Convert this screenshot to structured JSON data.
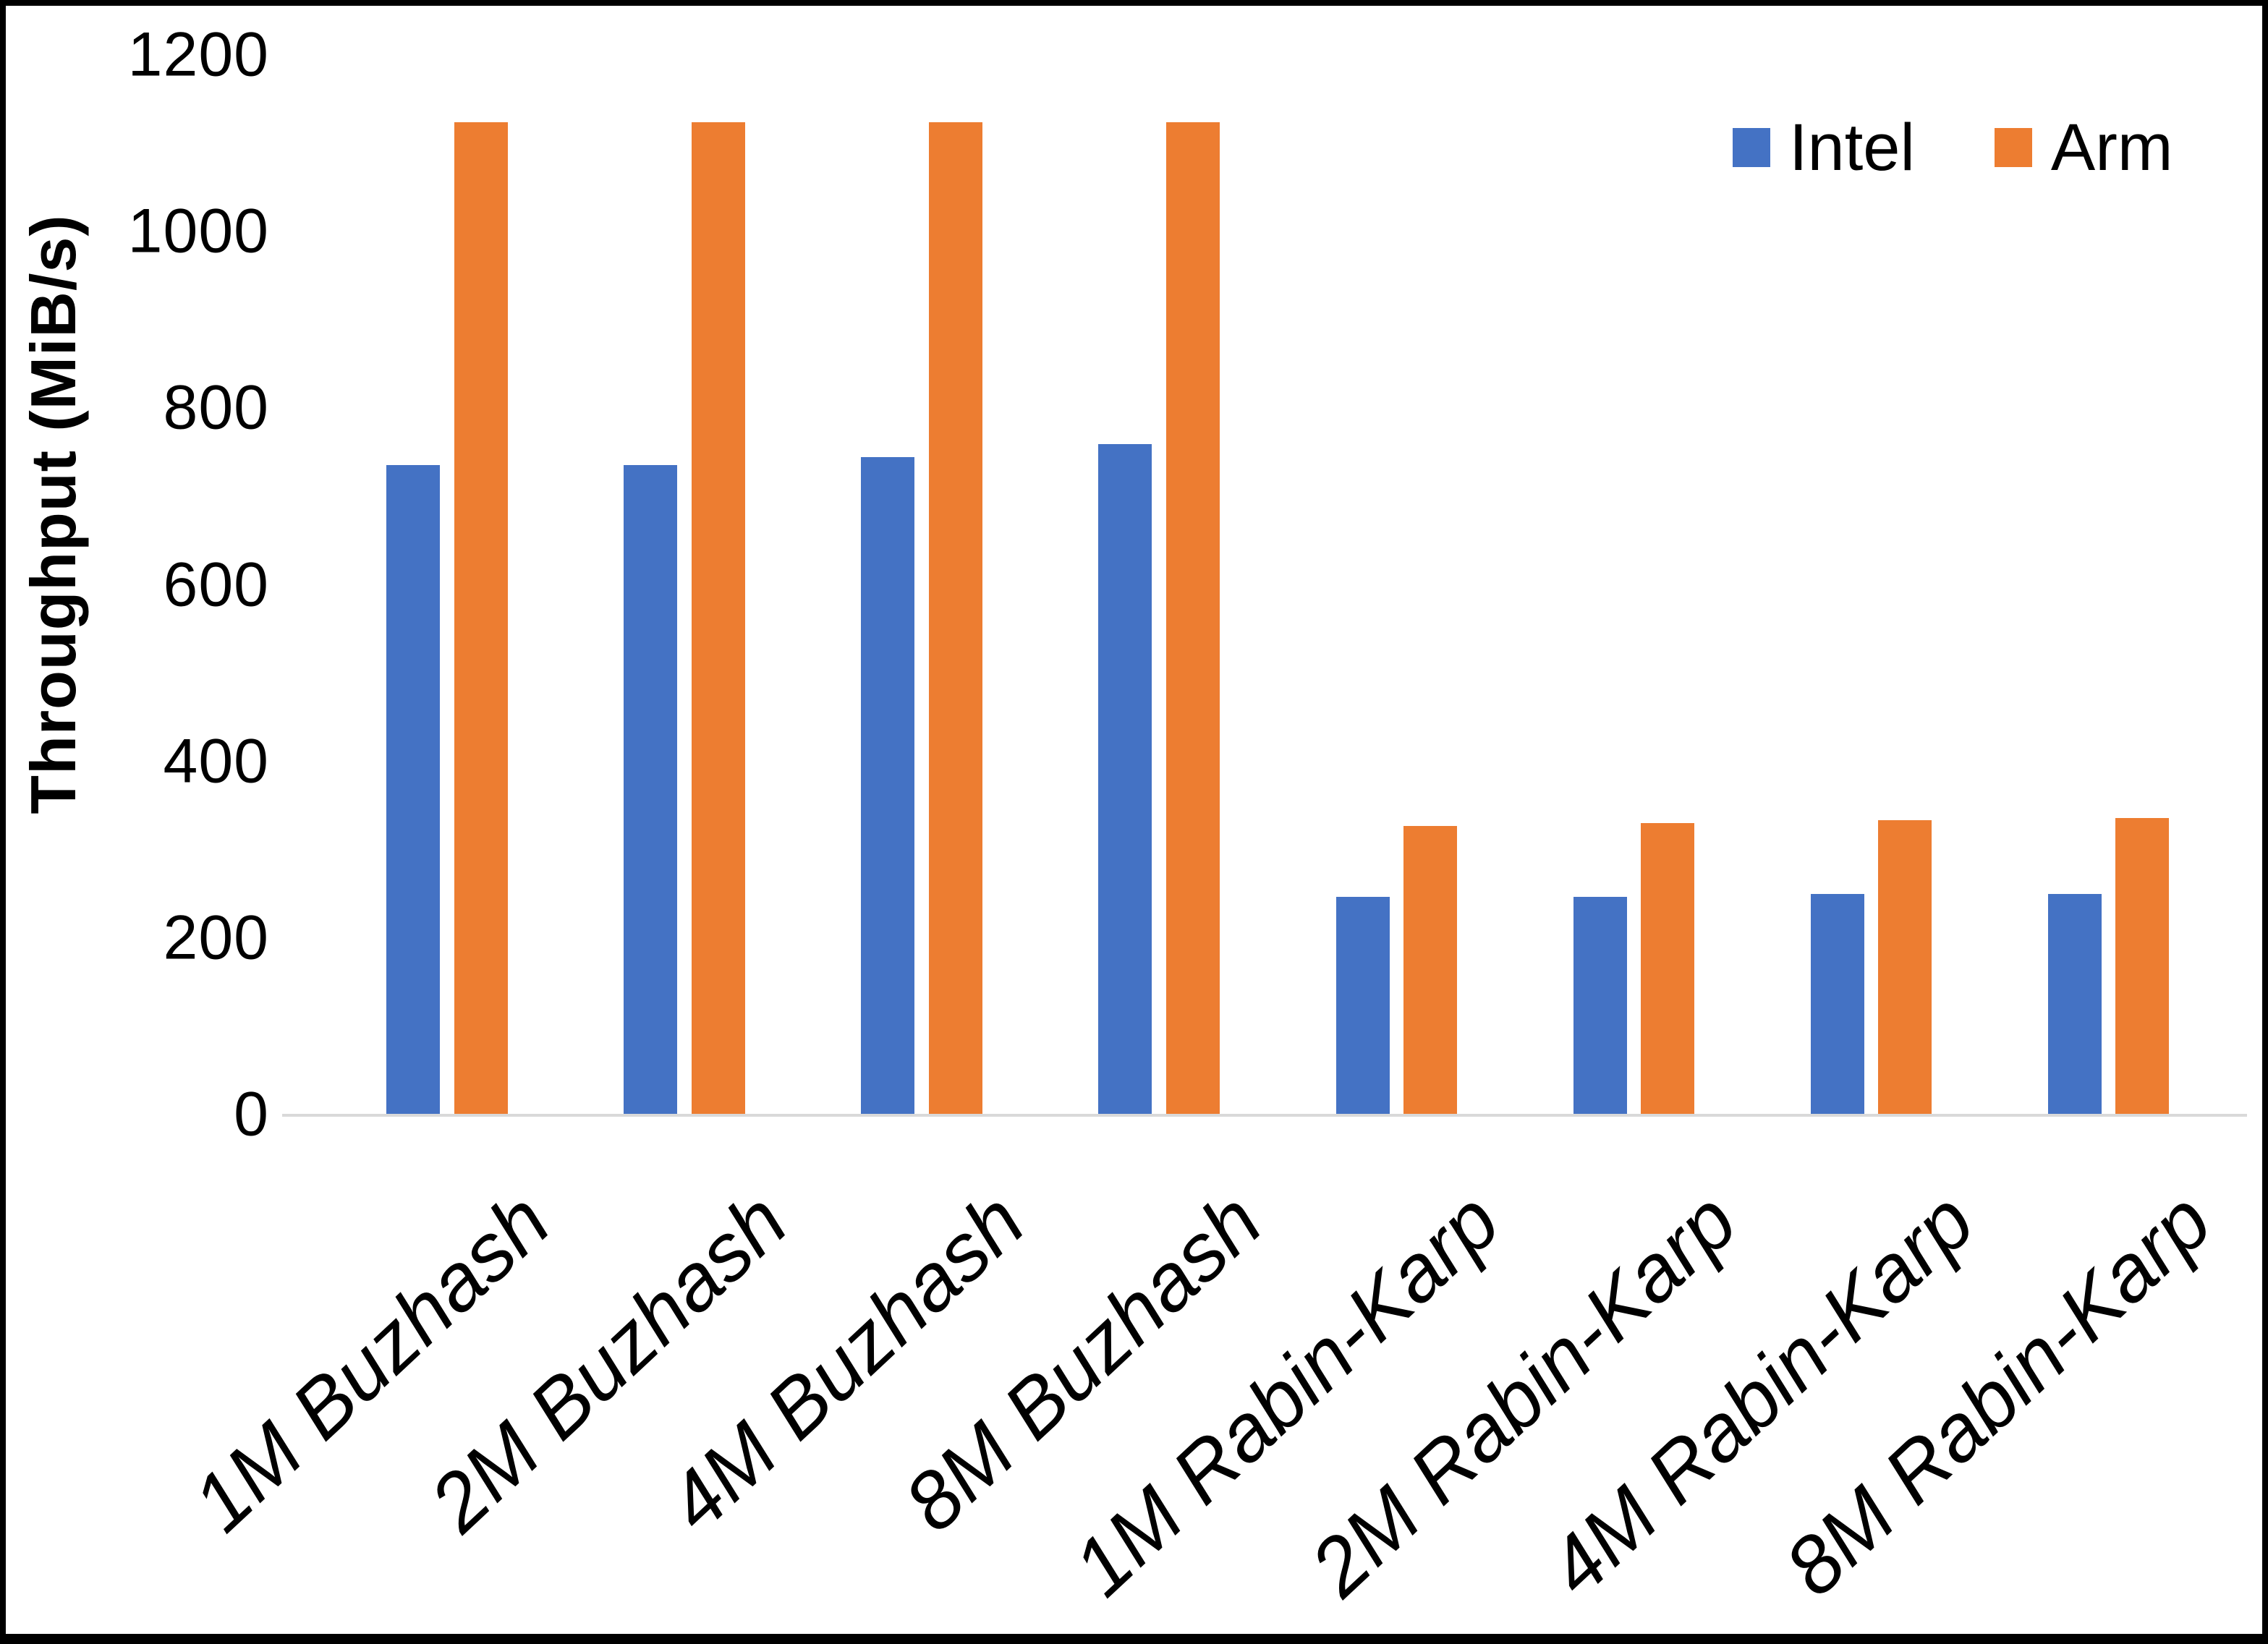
{
  "chart_data": {
    "type": "bar",
    "categories": [
      "1M Buzhash",
      "2M Buzhash",
      "4M Buzhash",
      "8M Buzhash",
      "1M Rabin-Karp",
      "2M Rabin-Karp",
      "4M Rabin-Karp",
      "8M Rabin-Karp"
    ],
    "series": [
      {
        "name": "Intel",
        "values": [
          736,
          736,
          745,
          760,
          247,
          247,
          251,
          251
        ]
      },
      {
        "name": "Arm",
        "values": [
          1125,
          1125,
          1125,
          1125,
          328,
          331,
          334,
          337
        ]
      }
    ],
    "title": "",
    "xlabel": "",
    "ylabel": "Throughput (MiB/s)",
    "ylim": [
      0,
      1200
    ],
    "yticks": [
      0,
      200,
      400,
      600,
      800,
      1000,
      1200
    ],
    "grid": false,
    "legend_position": "top-right",
    "colors": {
      "intel": "#4472C4",
      "arm": "#ED7D31",
      "axis_line": "#D9D9D9",
      "text": "#000000",
      "frame": "#000000",
      "background": "#FFFFFF"
    }
  }
}
